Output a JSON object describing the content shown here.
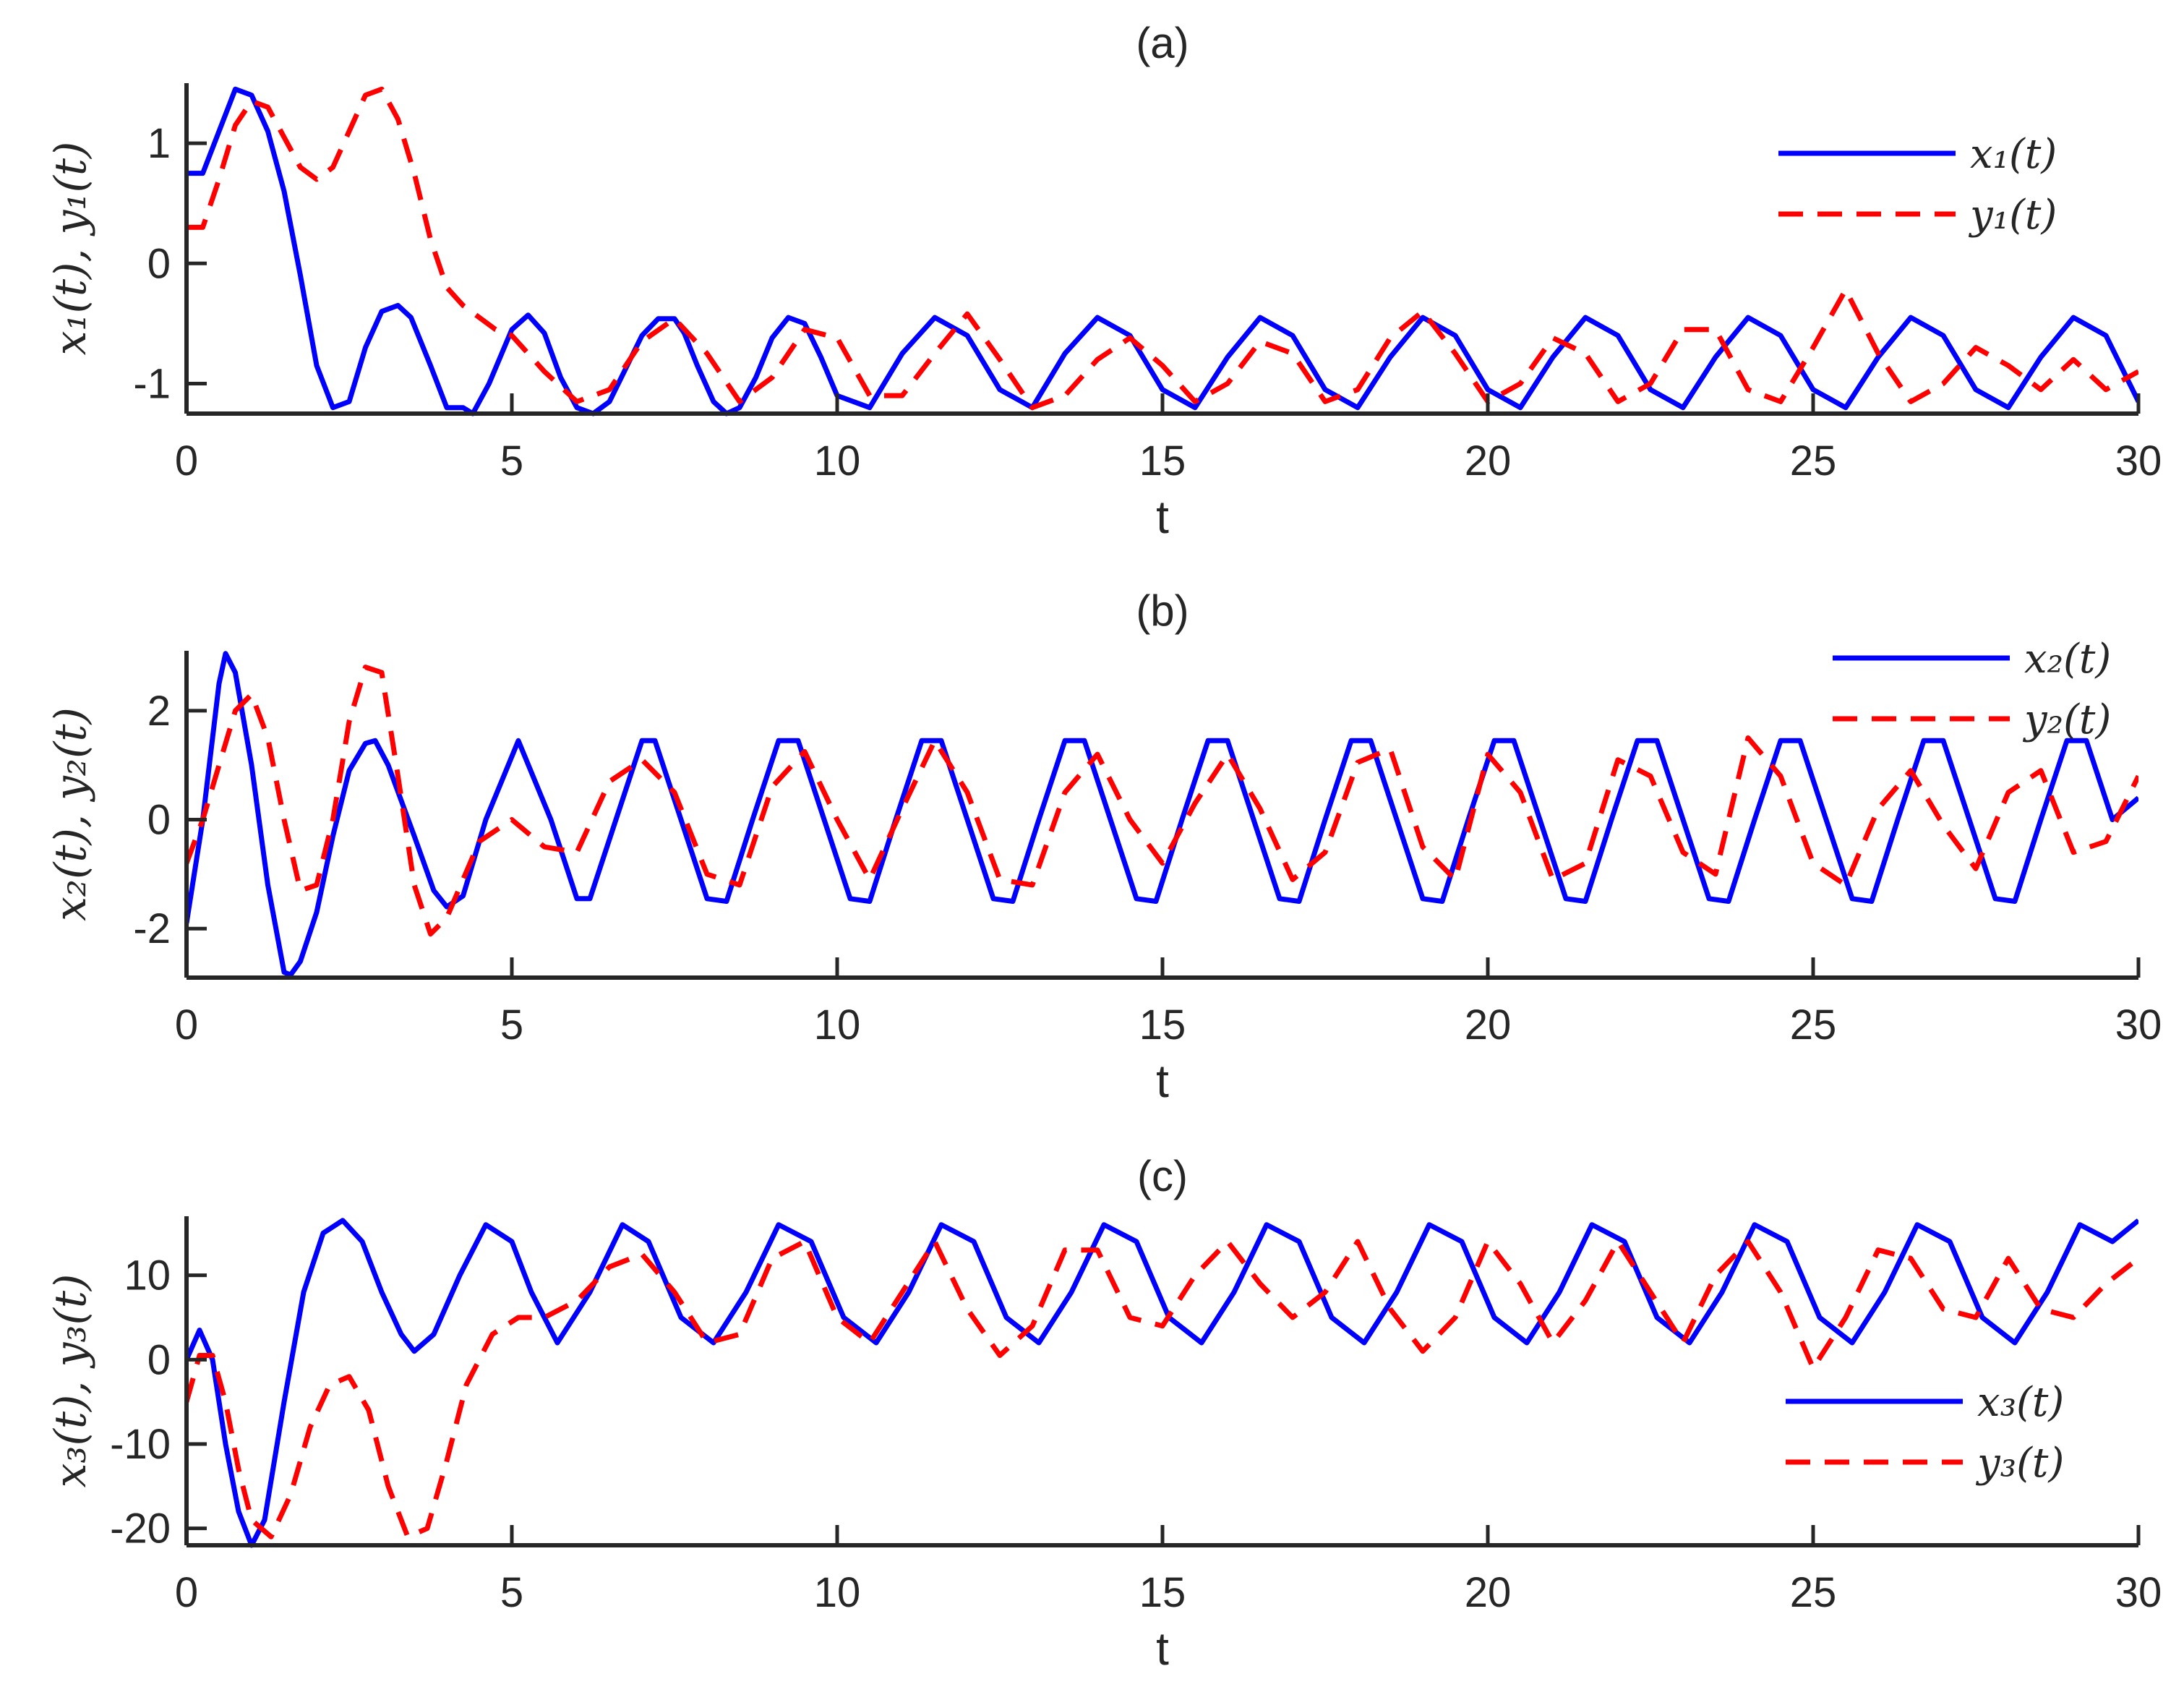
{
  "chart_data": [
    {
      "type": "line",
      "title": "(a)",
      "xlabel": "t",
      "ylabel": "x₁(t), y₁(t)",
      "xlim": [
        0,
        30
      ],
      "ylim": [
        -1.25,
        1.5
      ],
      "xticks": [
        "0",
        "5",
        "10",
        "15",
        "20",
        "25",
        "30"
      ],
      "yticks": [
        "1",
        "0",
        "-1"
      ],
      "legend_position": "top-right",
      "series": [
        {
          "name": "x₁(t)",
          "color": "#0000ff",
          "style": "solid",
          "x": [
            0,
            0.25,
            0.5,
            0.75,
            1.0,
            1.25,
            1.5,
            1.75,
            2.0,
            2.25,
            2.5,
            2.75,
            3.0,
            3.25,
            3.45,
            3.75,
            4.0,
            4.25,
            4.4,
            4.65,
            5.0,
            5.25,
            5.5,
            5.75,
            6.0,
            6.25,
            6.5,
            7.0,
            7.25,
            7.5,
            7.65,
            7.85,
            8.1,
            8.3,
            8.5,
            8.75,
            9.0,
            9.25,
            9.5,
            9.75,
            10.0,
            10.5,
            11.0,
            11.5,
            12.0,
            12.5,
            13.0,
            13.5,
            14.0,
            14.5,
            15.0,
            15.5,
            16.0,
            16.5,
            17.0,
            17.5,
            18.0,
            18.5,
            19.0,
            19.5,
            20.0,
            20.5,
            21.0,
            21.5,
            22.0,
            22.5,
            23.0,
            23.5,
            24.0,
            24.5,
            25.0,
            25.5,
            26.0,
            26.5,
            27.0,
            27.5,
            28.0,
            28.5,
            29.0,
            29.5,
            30.0
          ],
          "y": [
            0.75,
            0.75,
            1.1,
            1.45,
            1.4,
            1.1,
            0.6,
            -0.1,
            -0.85,
            -1.2,
            -1.15,
            -0.7,
            -0.4,
            -0.35,
            -0.45,
            -0.85,
            -1.2,
            -1.2,
            -1.25,
            -1.0,
            -0.55,
            -0.43,
            -0.58,
            -0.95,
            -1.2,
            -1.25,
            -1.15,
            -0.6,
            -0.46,
            -0.46,
            -0.58,
            -0.85,
            -1.15,
            -1.25,
            -1.2,
            -0.95,
            -0.62,
            -0.45,
            -0.5,
            -0.78,
            -1.1,
            -1.2,
            -0.75,
            -0.45,
            -0.6,
            -1.05,
            -1.2,
            -0.75,
            -0.45,
            -0.6,
            -1.05,
            -1.2,
            -0.78,
            -0.45,
            -0.6,
            -1.05,
            -1.2,
            -0.78,
            -0.45,
            -0.6,
            -1.05,
            -1.2,
            -0.78,
            -0.45,
            -0.6,
            -1.05,
            -1.2,
            -0.78,
            -0.45,
            -0.6,
            -1.05,
            -1.2,
            -0.78,
            -0.45,
            -0.6,
            -1.05,
            -1.2,
            -0.78,
            -0.45,
            -0.6,
            -1.15
          ]
        },
        {
          "name": "y₁(t)",
          "color": "#ff0000",
          "style": "dashed",
          "x": [
            0,
            0.25,
            0.5,
            0.75,
            1.0,
            1.25,
            1.5,
            1.75,
            2.0,
            2.25,
            2.5,
            2.75,
            3.0,
            3.25,
            3.5,
            3.75,
            4.0,
            4.25,
            4.5,
            4.75,
            5.0,
            5.5,
            6.0,
            6.5,
            7.0,
            7.5,
            8.0,
            8.5,
            9.0,
            9.5,
            10.0,
            10.5,
            11.0,
            11.5,
            12.0,
            12.5,
            13.0,
            13.5,
            14.0,
            14.5,
            15.0,
            15.5,
            16.0,
            16.5,
            17.0,
            17.5,
            18.0,
            18.5,
            19.0,
            19.5,
            20.0,
            20.5,
            21.0,
            21.5,
            22.0,
            22.5,
            23.0,
            23.5,
            24.0,
            24.5,
            25.0,
            25.5,
            26.0,
            26.5,
            27.0,
            27.5,
            28.0,
            28.5,
            29.0,
            29.5,
            30.0
          ],
          "y": [
            0.3,
            0.3,
            0.7,
            1.15,
            1.35,
            1.3,
            1.05,
            0.8,
            0.7,
            0.8,
            1.1,
            1.4,
            1.45,
            1.2,
            0.75,
            0.2,
            -0.2,
            -0.35,
            -0.45,
            -0.55,
            -0.6,
            -0.9,
            -1.15,
            -1.05,
            -0.65,
            -0.46,
            -0.75,
            -1.15,
            -0.95,
            -0.55,
            -0.62,
            -1.1,
            -1.1,
            -0.75,
            -0.42,
            -0.8,
            -1.2,
            -1.1,
            -0.8,
            -0.62,
            -0.85,
            -1.15,
            -1.0,
            -0.65,
            -0.75,
            -1.15,
            -1.05,
            -0.62,
            -0.4,
            -0.75,
            -1.15,
            -1.0,
            -0.62,
            -0.75,
            -1.15,
            -1.0,
            -0.55,
            -0.55,
            -1.05,
            -1.15,
            -0.7,
            -0.22,
            -0.75,
            -1.15,
            -1.0,
            -0.7,
            -0.85,
            -1.05,
            -0.8,
            -1.05,
            -0.9
          ]
        }
      ]
    },
    {
      "type": "line",
      "title": "(b)",
      "xlabel": "t",
      "ylabel": "x₂(t), y₂(t)",
      "xlim": [
        0,
        30
      ],
      "ylim": [
        -2.9,
        3.1
      ],
      "xticks": [
        "0",
        "5",
        "10",
        "15",
        "20",
        "25",
        "30"
      ],
      "yticks": [
        "2",
        "0",
        "-2"
      ],
      "legend_position": "top-right",
      "series": [
        {
          "name": "x₂(t)",
          "color": "#0000ff",
          "style": "solid",
          "x": [
            0,
            0.25,
            0.5,
            0.6,
            0.75,
            1.0,
            1.25,
            1.5,
            1.6,
            1.75,
            2.0,
            2.25,
            2.5,
            2.75,
            2.9,
            3.1,
            3.5,
            3.8,
            4.0,
            4.25,
            4.6,
            5.1,
            5.6,
            6.0,
            6.2,
            6.6,
            7.0,
            7.2,
            7.6,
            8.0,
            8.3,
            8.7,
            9.1,
            9.4,
            9.8,
            10.2,
            10.5,
            10.9,
            11.3,
            11.6,
            12.0,
            12.4,
            12.7,
            13.1,
            13.5,
            13.8,
            14.2,
            14.6,
            14.9,
            15.3,
            15.7,
            16.0,
            16.4,
            16.8,
            17.1,
            17.5,
            17.9,
            18.2,
            18.6,
            19.0,
            19.3,
            19.7,
            20.1,
            20.4,
            20.8,
            21.2,
            21.5,
            21.9,
            22.3,
            22.6,
            23.0,
            23.4,
            23.7,
            24.1,
            24.5,
            24.8,
            25.2,
            25.6,
            25.9,
            26.3,
            26.7,
            27.0,
            27.4,
            27.8,
            28.1,
            28.5,
            28.9,
            29.2,
            29.6,
            30.0
          ],
          "y": [
            -1.9,
            0.0,
            2.5,
            3.05,
            2.7,
            1.0,
            -1.2,
            -2.8,
            -2.85,
            -2.6,
            -1.7,
            -0.3,
            0.9,
            1.4,
            1.45,
            1.0,
            -0.3,
            -1.3,
            -1.6,
            -1.4,
            0.0,
            1.45,
            0.0,
            -1.45,
            -1.45,
            0.0,
            1.45,
            1.45,
            0.0,
            -1.45,
            -1.5,
            0.0,
            1.45,
            1.45,
            0.0,
            -1.45,
            -1.5,
            0.0,
            1.45,
            1.45,
            0.0,
            -1.45,
            -1.5,
            0.0,
            1.45,
            1.45,
            0.0,
            -1.45,
            -1.5,
            0.0,
            1.45,
            1.45,
            0.0,
            -1.45,
            -1.5,
            0.0,
            1.45,
            1.45,
            0.0,
            -1.45,
            -1.5,
            0.0,
            1.45,
            1.45,
            0.0,
            -1.45,
            -1.5,
            0.0,
            1.45,
            1.45,
            0.0,
            -1.45,
            -1.5,
            0.0,
            1.45,
            1.45,
            0.0,
            -1.45,
            -1.5,
            0.0,
            1.45,
            1.45,
            0.0,
            -1.45,
            -1.5,
            0.0,
            1.45,
            1.45,
            0.0,
            0.4
          ]
        },
        {
          "name": "y₂(t)",
          "color": "#ff0000",
          "style": "dashed",
          "x": [
            0,
            0.25,
            0.5,
            0.75,
            1.0,
            1.25,
            1.5,
            1.75,
            2.0,
            2.25,
            2.5,
            2.75,
            3.0,
            3.25,
            3.5,
            3.75,
            4.0,
            4.5,
            5.0,
            5.5,
            6.0,
            6.5,
            7.0,
            7.5,
            8.0,
            8.5,
            9.0,
            9.5,
            10.0,
            10.5,
            11.0,
            11.5,
            12.0,
            12.5,
            13.0,
            13.5,
            14.0,
            14.5,
            15.0,
            15.5,
            16.0,
            16.5,
            17.0,
            17.5,
            18.0,
            18.5,
            19.0,
            19.5,
            20.0,
            20.5,
            21.0,
            21.5,
            22.0,
            22.5,
            23.0,
            23.5,
            24.0,
            24.5,
            25.0,
            25.5,
            26.0,
            26.5,
            27.0,
            27.5,
            28.0,
            28.5,
            29.0,
            29.5,
            30.0
          ],
          "y": [
            -0.8,
            0.0,
            1.0,
            2.0,
            2.3,
            1.5,
            0.0,
            -1.3,
            -1.2,
            0.0,
            1.8,
            2.8,
            2.7,
            0.8,
            -1.2,
            -2.1,
            -1.8,
            -0.4,
            0.0,
            -0.5,
            -0.6,
            0.7,
            1.1,
            0.5,
            -1.0,
            -1.2,
            0.6,
            1.25,
            0.0,
            -1.1,
            0.2,
            1.45,
            0.5,
            -1.1,
            -1.2,
            0.5,
            1.2,
            0.0,
            -0.8,
            0.3,
            1.2,
            0.2,
            -1.1,
            -0.6,
            1.05,
            1.3,
            -0.5,
            -1.1,
            1.2,
            0.5,
            -1.1,
            -0.8,
            1.1,
            0.8,
            -0.6,
            -1.0,
            1.5,
            0.8,
            -0.8,
            -1.2,
            0.2,
            0.9,
            -0.1,
            -0.9,
            0.5,
            0.9,
            -0.6,
            -0.4,
            0.8
          ]
        }
      ]
    },
    {
      "type": "line",
      "title": "(c)",
      "xlabel": "t",
      "ylabel": "x₃(t), y₃(t)",
      "xlim": [
        0,
        30
      ],
      "ylim": [
        -22,
        17
      ],
      "xticks": [
        "0",
        "5",
        "10",
        "15",
        "20",
        "25",
        "30"
      ],
      "yticks": [
        "10",
        "0",
        "-10",
        "-20"
      ],
      "legend_position": "lower-right",
      "series": [
        {
          "name": "x₃(t)",
          "color": "#0000ff",
          "style": "solid",
          "x": [
            0,
            0.2,
            0.4,
            0.6,
            0.8,
            1.0,
            1.2,
            1.5,
            1.8,
            2.1,
            2.4,
            2.7,
            3.0,
            3.3,
            3.5,
            3.8,
            4.2,
            4.6,
            5.0,
            5.3,
            5.7,
            6.2,
            6.7,
            7.1,
            7.6,
            8.1,
            8.6,
            9.1,
            9.6,
            10.1,
            10.6,
            11.1,
            11.6,
            12.1,
            12.6,
            13.1,
            13.6,
            14.1,
            14.6,
            15.1,
            15.6,
            16.1,
            16.6,
            17.1,
            17.6,
            18.1,
            18.6,
            19.1,
            19.6,
            20.1,
            20.6,
            21.1,
            21.6,
            22.1,
            22.6,
            23.1,
            23.6,
            24.1,
            24.6,
            25.1,
            25.6,
            26.1,
            26.6,
            27.1,
            27.6,
            28.1,
            28.6,
            29.1,
            29.6,
            30.0
          ],
          "y": [
            0.0,
            3.5,
            0.0,
            -10,
            -18,
            -22,
            -19,
            -5,
            8,
            15,
            16.5,
            14,
            8,
            3,
            1,
            3,
            10,
            16,
            14,
            8,
            2,
            8,
            16,
            14,
            5,
            2,
            8,
            16,
            14,
            5,
            2,
            8,
            16,
            14,
            5,
            2,
            8,
            16,
            14,
            5,
            2,
            8,
            16,
            14,
            5,
            2,
            8,
            16,
            14,
            5,
            2,
            8,
            16,
            14,
            5,
            2,
            8,
            16,
            14,
            5,
            2,
            8,
            16,
            14,
            5,
            2,
            8,
            16,
            14,
            16.5
          ]
        },
        {
          "name": "y₃(t)",
          "color": "#ff0000",
          "style": "dashed",
          "x": [
            0,
            0.2,
            0.4,
            0.6,
            0.8,
            1.0,
            1.3,
            1.6,
            1.9,
            2.2,
            2.5,
            2.8,
            3.1,
            3.4,
            3.7,
            4.0,
            4.3,
            4.7,
            5.1,
            5.5,
            6.0,
            6.5,
            7.0,
            7.5,
            8.0,
            8.5,
            9.0,
            9.5,
            10.0,
            10.5,
            11.0,
            11.5,
            12.0,
            12.5,
            13.0,
            13.5,
            14.0,
            14.5,
            15.0,
            15.5,
            16.0,
            16.5,
            17.0,
            17.5,
            18.0,
            18.5,
            19.0,
            19.5,
            20.0,
            20.5,
            21.0,
            21.5,
            22.0,
            22.5,
            23.0,
            23.5,
            24.0,
            24.5,
            25.0,
            25.5,
            26.0,
            26.5,
            27.0,
            27.5,
            28.0,
            28.5,
            29.0,
            29.5,
            30.0
          ],
          "y": [
            -5,
            0.5,
            0.5,
            -5,
            -13,
            -19,
            -21,
            -16,
            -8,
            -3,
            -2,
            -6,
            -15,
            -21,
            -20,
            -12,
            -3,
            3,
            5,
            5,
            7,
            11,
            12.5,
            8,
            2,
            3,
            12,
            14,
            5,
            2,
            8,
            14,
            6,
            0.5,
            4,
            13,
            13,
            5,
            4,
            10,
            14,
            9,
            5,
            8,
            14,
            6,
            1,
            5,
            14,
            9,
            2,
            7,
            14,
            8,
            2,
            10,
            14,
            8,
            -1,
            5,
            13,
            12,
            6,
            5,
            12,
            6,
            5,
            9,
            12
          ]
        }
      ]
    }
  ]
}
